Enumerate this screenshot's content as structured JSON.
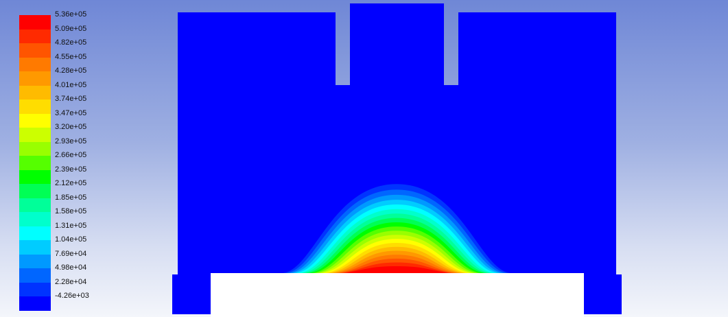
{
  "legend": {
    "labels": [
      "5.36e+05",
      "5.09e+05",
      "4.82e+05",
      "4.55e+05",
      "4.28e+05",
      "4.01e+05",
      "3.74e+05",
      "3.47e+05",
      "3.20e+05",
      "2.93e+05",
      "2.66e+05",
      "2.39e+05",
      "2.12e+05",
      "1.85e+05",
      "1.58e+05",
      "1.31e+05",
      "1.04e+05",
      "7.69e+04",
      "4.98e+04",
      "2.28e+04",
      "-4.26e+03"
    ],
    "colors": [
      "#ff0000",
      "#ff2a00",
      "#ff5500",
      "#ff7a00",
      "#ff9900",
      "#ffbb00",
      "#ffdd00",
      "#ffff00",
      "#ccff00",
      "#99ff00",
      "#55ff00",
      "#00ff00",
      "#00ff55",
      "#00ff99",
      "#00ffcc",
      "#00ffff",
      "#00ccff",
      "#0099ff",
      "#0066ff",
      "#0033ff",
      "#0000ff"
    ]
  },
  "domain_colors": {
    "fluid": "#0000ff",
    "solid": "#ffffff",
    "background_top": "#6f87d6",
    "background_bottom": "#f4f6fb"
  }
}
